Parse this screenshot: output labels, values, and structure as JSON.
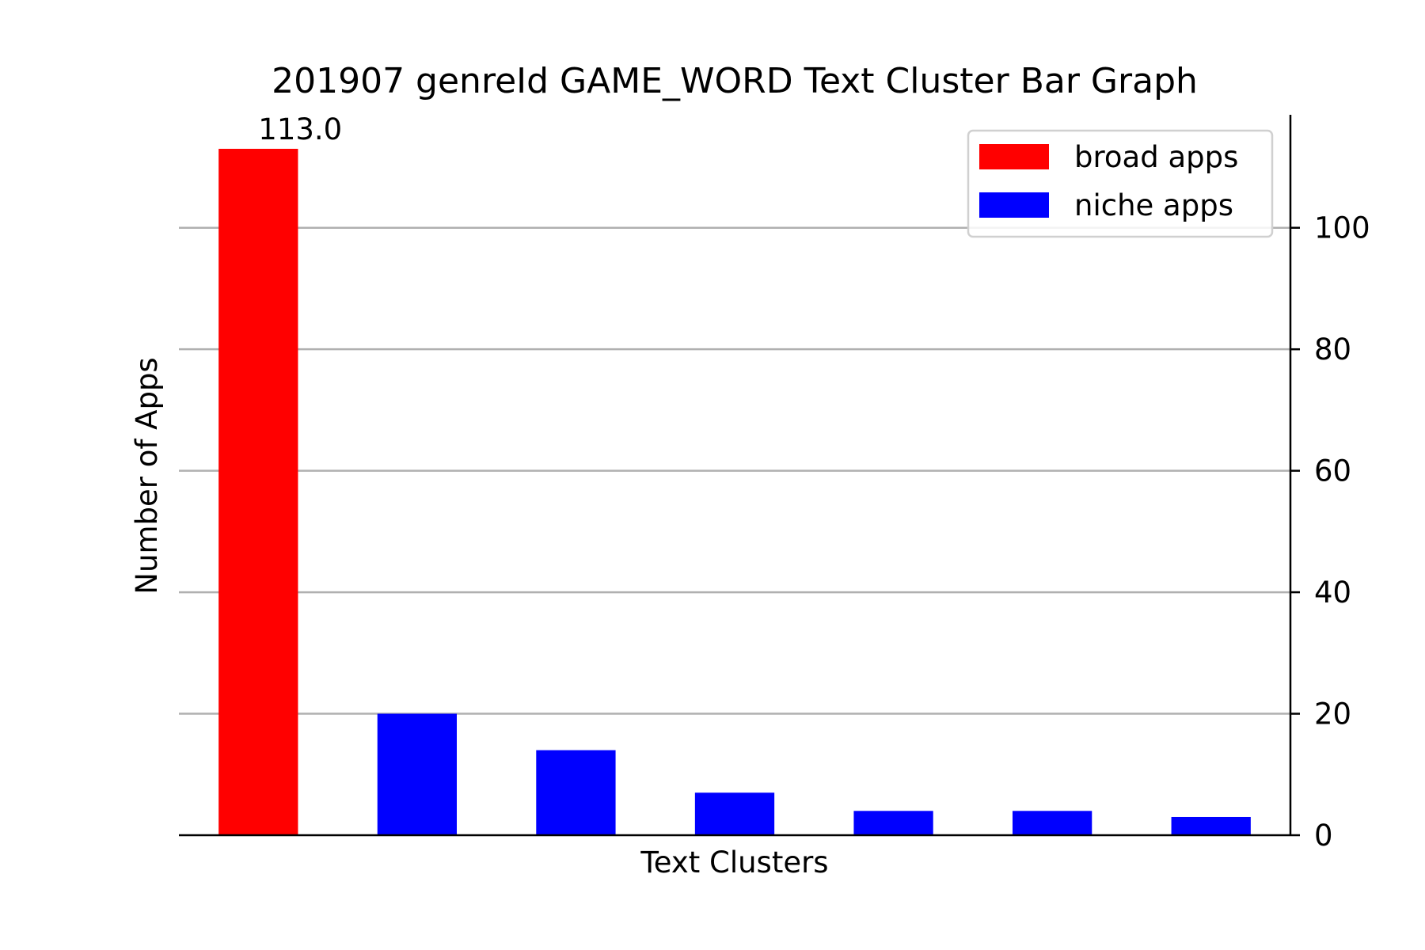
{
  "chart_data": {
    "type": "bar",
    "title": "201907 genreId GAME_WORD Text Cluster Bar Graph",
    "xlabel": "Text Clusters",
    "ylabel": "Number of Apps",
    "ylim": [
      0,
      118.6
    ],
    "yticks": [
      0,
      20,
      40,
      60,
      80,
      100
    ],
    "y_axis_side": "right",
    "grid": {
      "y": true,
      "x": false
    },
    "legend_position": "top-right",
    "categories": [
      "",
      "",
      "",
      "",
      "",
      "",
      ""
    ],
    "values": [
      113,
      20,
      14,
      7,
      4,
      4,
      3
    ],
    "bar_series": [
      "broad",
      "niche",
      "niche",
      "niche",
      "niche",
      "niche",
      "niche"
    ],
    "series": [
      {
        "key": "broad",
        "name": "broad apps",
        "color": "#ff0000"
      },
      {
        "key": "niche",
        "name": "niche apps",
        "color": "#0000ff"
      }
    ],
    "data_labels": [
      {
        "bar_index": 0,
        "text": "113.0"
      }
    ]
  }
}
